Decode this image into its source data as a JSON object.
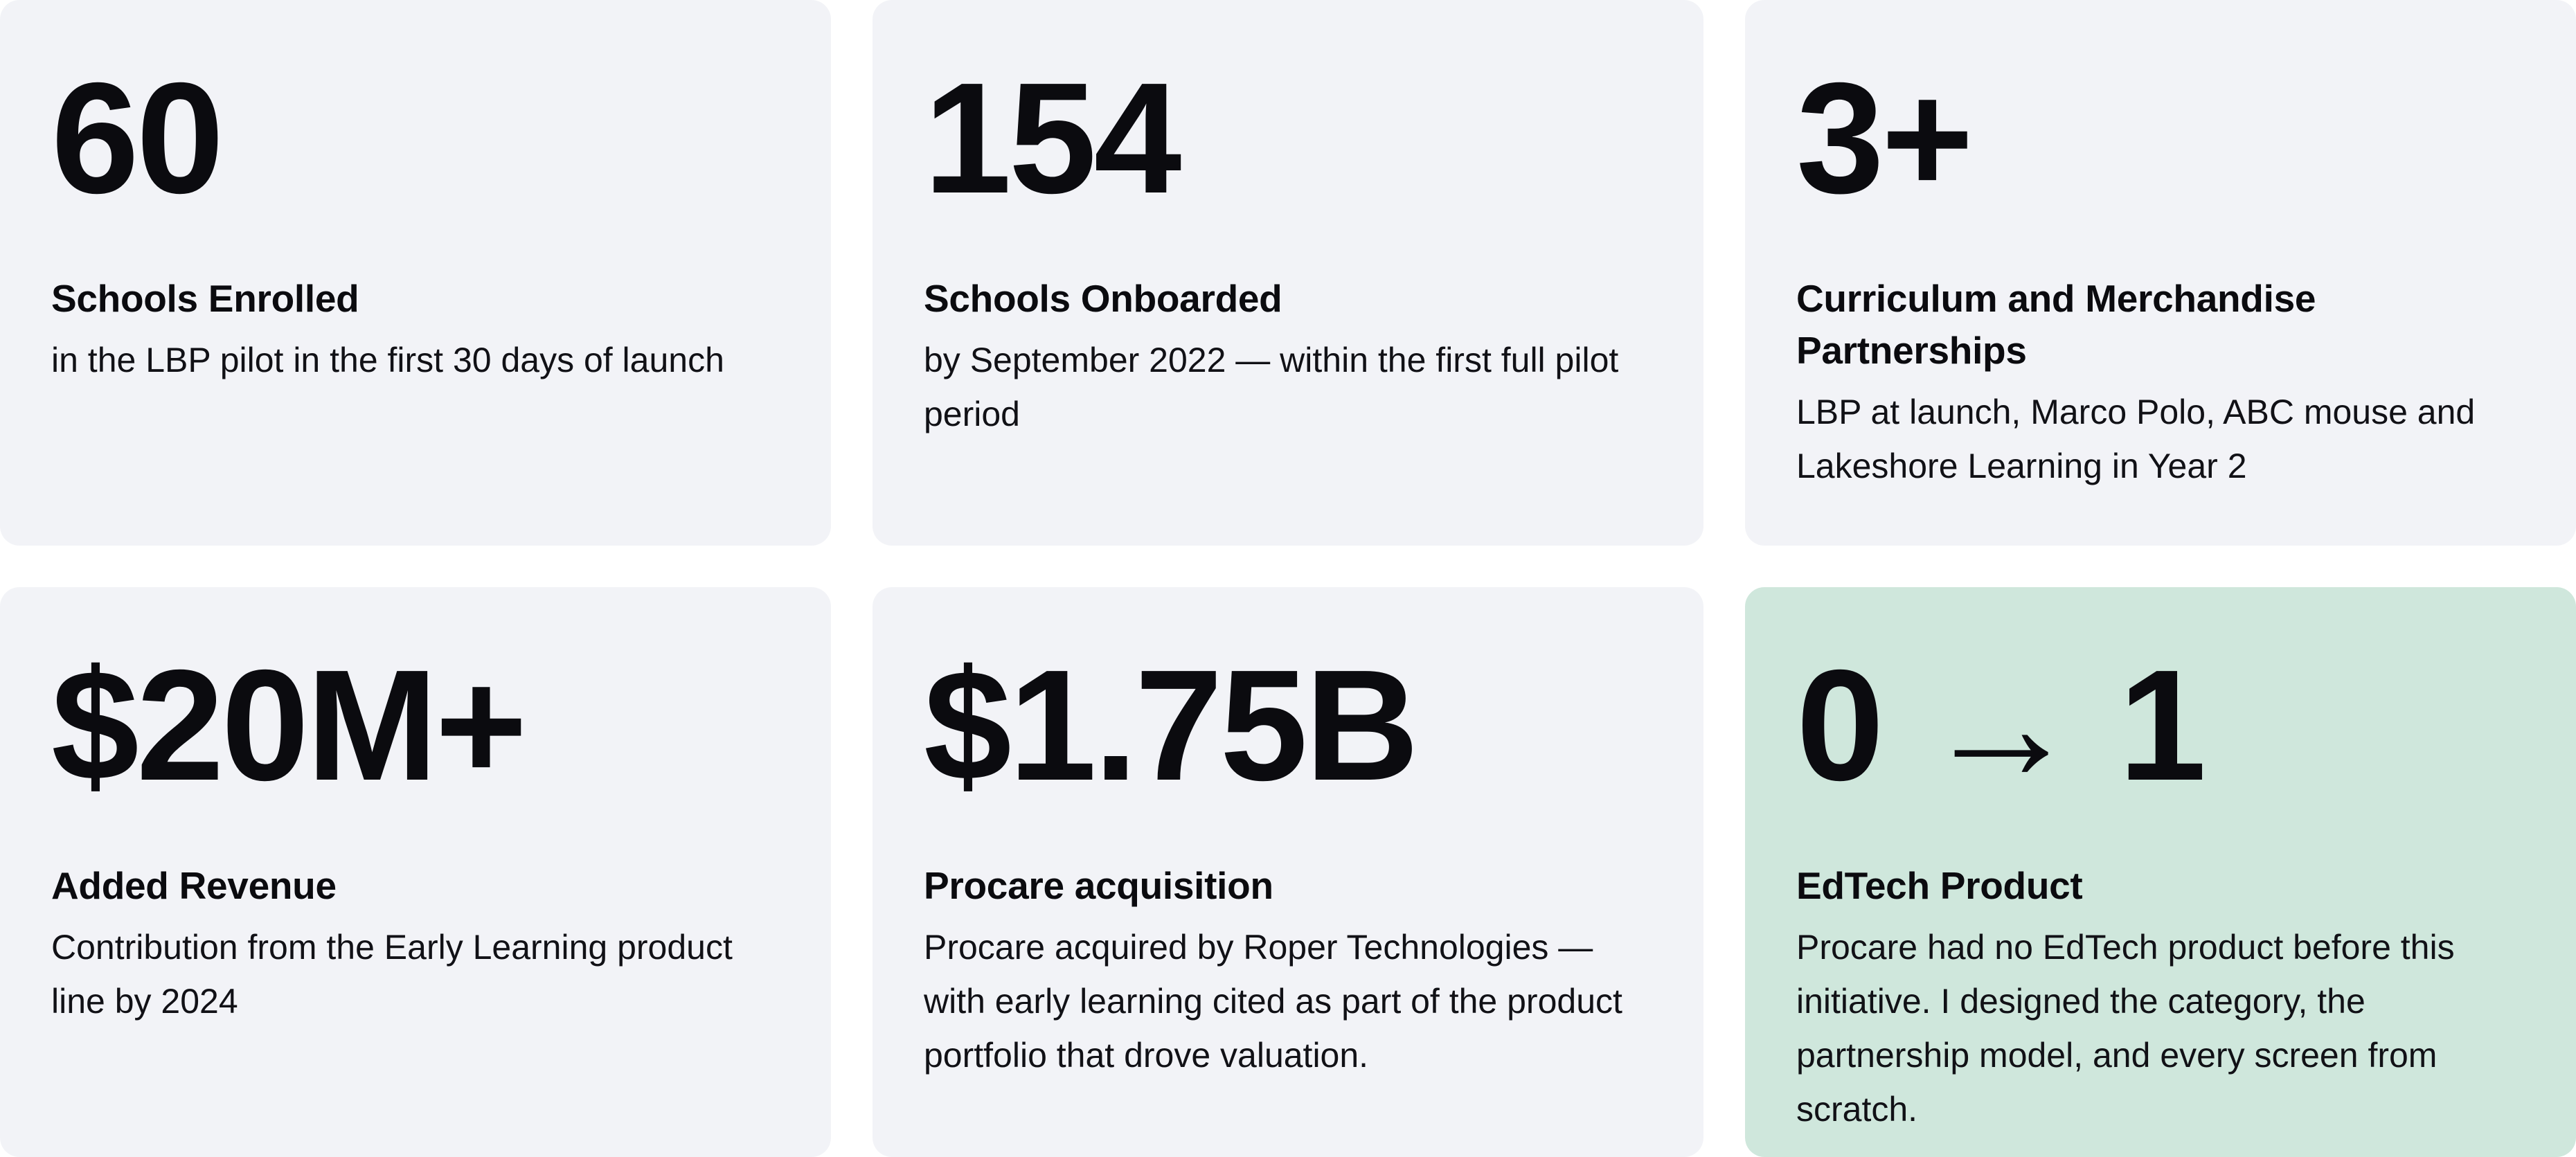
{
  "cards": [
    {
      "stat": "60",
      "title": "Schools Enrolled",
      "desc": "in the LBP pilot in the first 30 days of launch"
    },
    {
      "stat": "154",
      "title": "Schools Onboarded",
      "desc": "by September 2022 — within the first full pilot period"
    },
    {
      "stat": "3+",
      "title": "Curriculum and Merchandise Partnerships",
      "desc": "LBP at launch, Marco Polo, ABC mouse and Lakeshore Learning in Year 2"
    },
    {
      "stat": "$20M+",
      "title": "Added Revenue",
      "desc": "Contribution from the Early Learning product line by 2024"
    },
    {
      "stat": "$1.75B",
      "title": "Procare acquisition",
      "desc": "Procare acquired by Roper Technologies — with early learning cited as part of the product portfolio that drove valuation."
    },
    {
      "stat": "0 → 1",
      "title": "EdTech Product",
      "desc": "Procare had no EdTech product before this initiative. I designed the category, the partnership model, and every screen from scratch."
    }
  ],
  "colors": {
    "card_background": "#f2f3f7",
    "highlight_background": "#cfe7dc",
    "text": "#0b0b0f"
  }
}
